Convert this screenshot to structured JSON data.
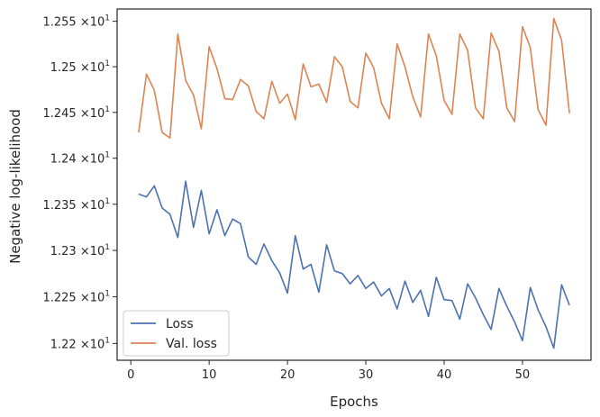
{
  "chart_data": {
    "type": "line",
    "title": "",
    "xlabel": "Epochs",
    "ylabel": "Negative log-likelihood",
    "xlim": [
      -1.75,
      58.75
    ],
    "ylim": [
      12.182,
      12.5635
    ],
    "x_ticks": [
      0,
      10,
      20,
      30,
      40,
      50
    ],
    "x_tick_labels": [
      "0",
      "10",
      "20",
      "30",
      "40",
      "50"
    ],
    "y_ticks": [
      12.2,
      12.25,
      12.3,
      12.35,
      12.4,
      12.45,
      12.5,
      12.55
    ],
    "y_tick_labels": [
      {
        "mant": "1.22",
        "exp": "1"
      },
      {
        "mant": "1.225",
        "exp": "1"
      },
      {
        "mant": "1.23",
        "exp": "1"
      },
      {
        "mant": "1.235",
        "exp": "1"
      },
      {
        "mant": "1.24",
        "exp": "1"
      },
      {
        "mant": "1.245",
        "exp": "1"
      },
      {
        "mant": "1.25",
        "exp": "1"
      },
      {
        "mant": "1.255",
        "exp": "1"
      }
    ],
    "y_tick_times": "×10",
    "log_y": true,
    "grid": false,
    "legend_position": "lower-left",
    "series": [
      {
        "name": "Loss",
        "color": "#4c72b0",
        "x": [
          1,
          2,
          3,
          4,
          5,
          6,
          7,
          8,
          9,
          10,
          11,
          12,
          13,
          14,
          15,
          16,
          17,
          18,
          19,
          20,
          21,
          22,
          23,
          24,
          25,
          26,
          27,
          28,
          29,
          30,
          31,
          32,
          33,
          34,
          35,
          36,
          37,
          38,
          39,
          40,
          41,
          42,
          43,
          44,
          45,
          46,
          47,
          48,
          49,
          50,
          51,
          52,
          53,
          54,
          55,
          56
        ],
        "values": [
          12.361,
          12.358,
          12.37,
          12.346,
          12.339,
          12.314,
          12.375,
          12.325,
          12.365,
          12.318,
          12.344,
          12.316,
          12.334,
          12.329,
          12.293,
          12.285,
          12.307,
          12.289,
          12.276,
          12.254,
          12.316,
          12.28,
          12.285,
          12.255,
          12.306,
          12.278,
          12.275,
          12.264,
          12.273,
          12.259,
          12.266,
          12.251,
          12.259,
          12.237,
          12.267,
          12.244,
          12.257,
          12.229,
          12.271,
          12.247,
          12.246,
          12.226,
          12.264,
          12.249,
          12.231,
          12.215,
          12.259,
          12.24,
          12.223,
          12.203,
          12.26,
          12.236,
          12.218,
          12.195,
          12.263,
          12.241
        ]
      },
      {
        "name": "Val. loss",
        "color": "#dd8452",
        "x": [
          1,
          2,
          3,
          4,
          5,
          6,
          7,
          8,
          9,
          10,
          11,
          12,
          13,
          14,
          15,
          16,
          17,
          18,
          19,
          20,
          21,
          22,
          23,
          24,
          25,
          26,
          27,
          28,
          29,
          30,
          31,
          32,
          33,
          34,
          35,
          36,
          37,
          38,
          39,
          40,
          41,
          42,
          43,
          44,
          45,
          46,
          47,
          48,
          49,
          50,
          51,
          52,
          53,
          54,
          55,
          56
        ],
        "values": [
          12.428,
          12.492,
          12.474,
          12.428,
          12.422,
          12.536,
          12.485,
          12.469,
          12.432,
          12.522,
          12.498,
          12.465,
          12.464,
          12.486,
          12.479,
          12.451,
          12.443,
          12.484,
          12.46,
          12.47,
          12.442,
          12.503,
          12.478,
          12.481,
          12.461,
          12.511,
          12.5,
          12.462,
          12.455,
          12.515,
          12.499,
          12.46,
          12.443,
          12.525,
          12.5,
          12.467,
          12.445,
          12.536,
          12.512,
          12.463,
          12.448,
          12.536,
          12.518,
          12.455,
          12.443,
          12.537,
          12.517,
          12.455,
          12.44,
          12.544,
          12.521,
          12.453,
          12.436,
          12.553,
          12.529,
          12.449
        ]
      }
    ]
  }
}
